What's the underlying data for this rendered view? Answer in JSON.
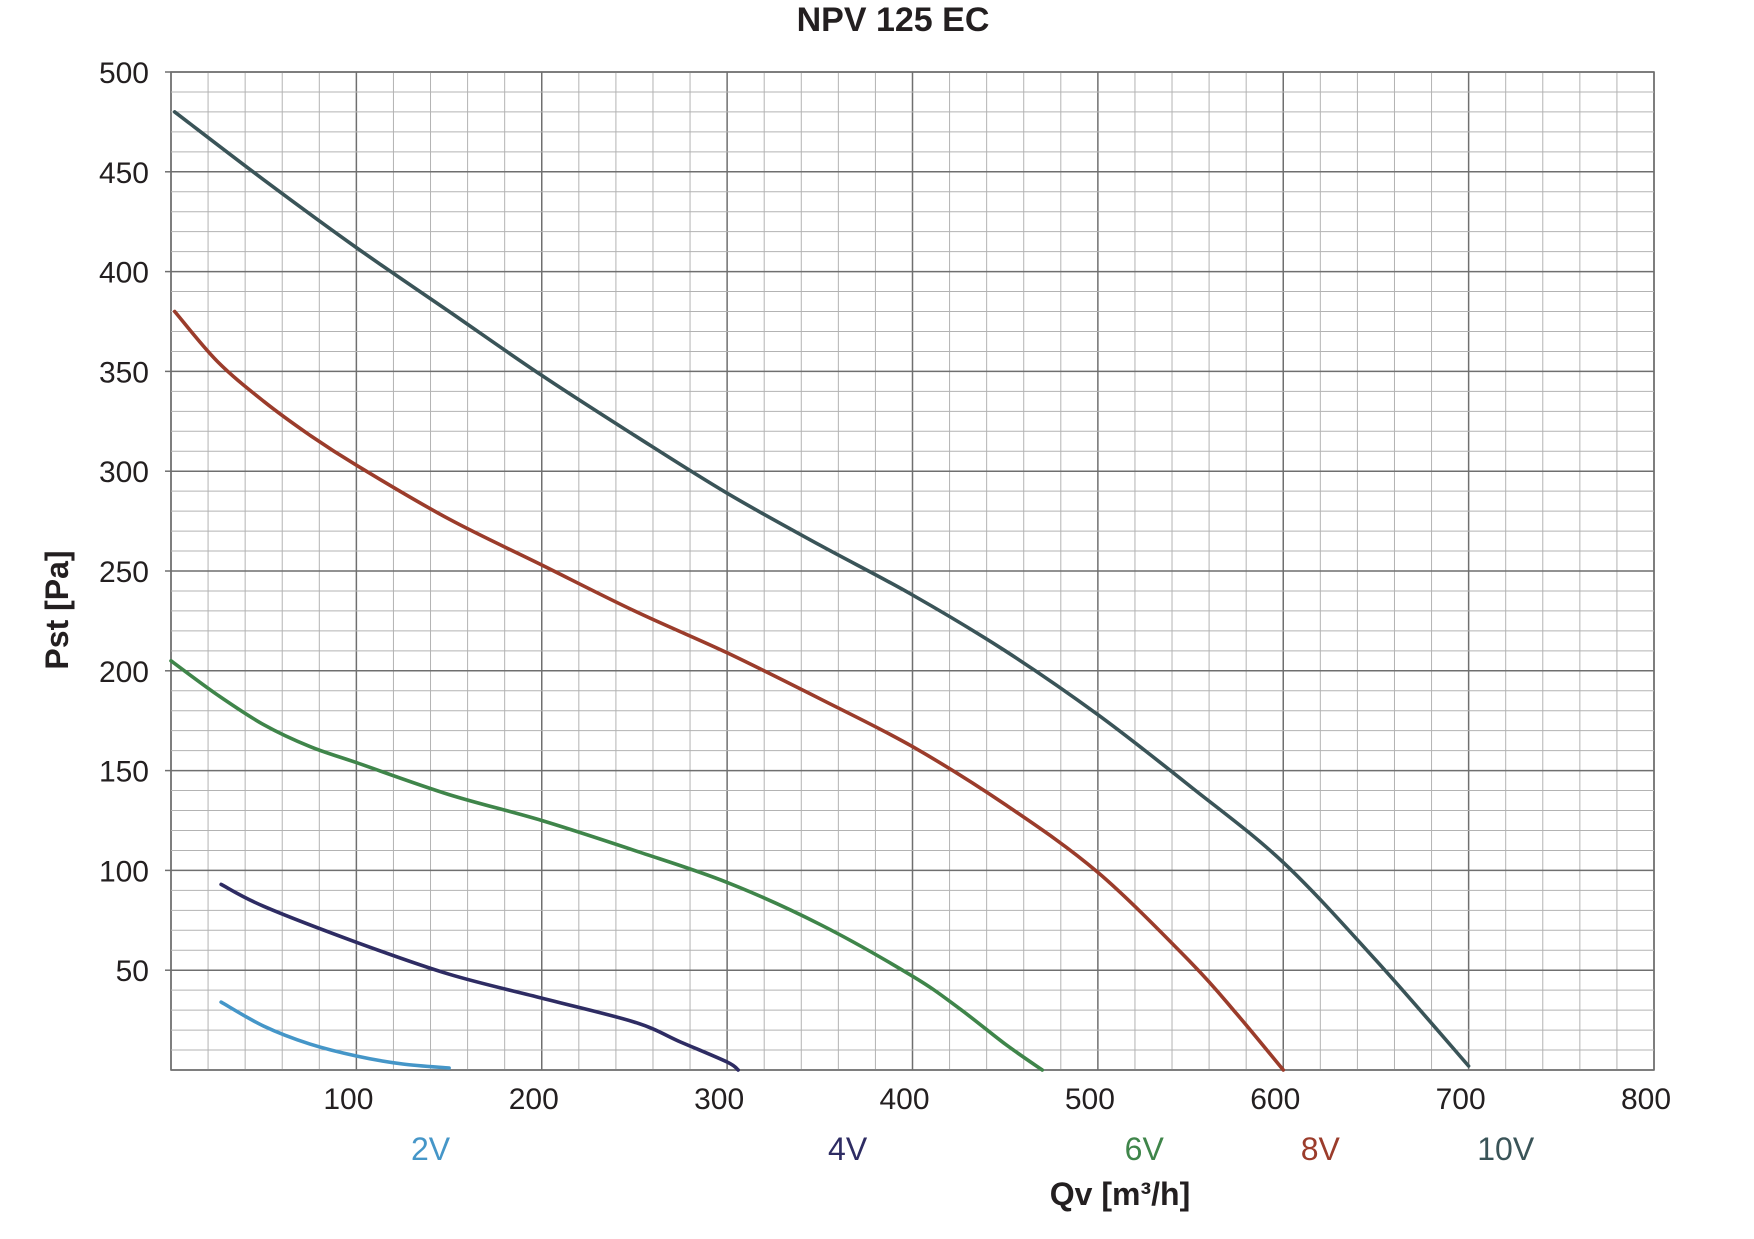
{
  "chart_data": {
    "type": "line",
    "title": "NPV 125 EC",
    "xlabel": "Qv [m³/h]",
    "ylabel": "Pst [Pa]",
    "xlim": [
      0,
      800
    ],
    "ylim": [
      0,
      500
    ],
    "x_ticks": [
      100,
      200,
      300,
      400,
      500,
      600,
      700,
      800
    ],
    "y_ticks": [
      50,
      100,
      150,
      200,
      250,
      300,
      350,
      400,
      450,
      500
    ],
    "grid": true,
    "legend": "labels below x-axis",
    "series": [
      {
        "name": "2V",
        "color": "#4596c8",
        "x": [
          27,
          50,
          75,
          100,
          125,
          150
        ],
        "y": [
          34,
          22,
          13,
          7,
          3,
          1
        ]
      },
      {
        "name": "4V",
        "color": "#2e2c63",
        "x": [
          27,
          50,
          100,
          150,
          200,
          250,
          275,
          300,
          306
        ],
        "y": [
          93,
          82,
          64,
          48,
          36,
          24,
          14,
          4,
          0
        ]
      },
      {
        "name": "6V",
        "color": "#3f854a",
        "x": [
          0,
          25,
          50,
          75,
          100,
          150,
          200,
          250,
          300,
          350,
          400,
          425,
          450,
          470
        ],
        "y": [
          205,
          188,
          173,
          162,
          154,
          138,
          125,
          110,
          94,
          73,
          47,
          31,
          13,
          0
        ]
      },
      {
        "name": "8V",
        "color": "#9b3c2b",
        "x": [
          2,
          25,
          50,
          75,
          100,
          150,
          200,
          250,
          300,
          350,
          400,
          450,
          500,
          550,
          575,
          600
        ],
        "y": [
          380,
          355,
          335,
          318,
          303,
          276,
          253,
          230,
          209,
          186,
          162,
          133,
          99,
          54,
          28,
          0
        ]
      },
      {
        "name": "10V",
        "color": "#3a5458",
        "x": [
          2,
          50,
          100,
          150,
          200,
          250,
          300,
          350,
          400,
          450,
          500,
          550,
          600,
          650,
          700
        ],
        "y": [
          480,
          446,
          412,
          380,
          348,
          318,
          289,
          263,
          238,
          210,
          178,
          142,
          104,
          55,
          2
        ]
      }
    ]
  }
}
